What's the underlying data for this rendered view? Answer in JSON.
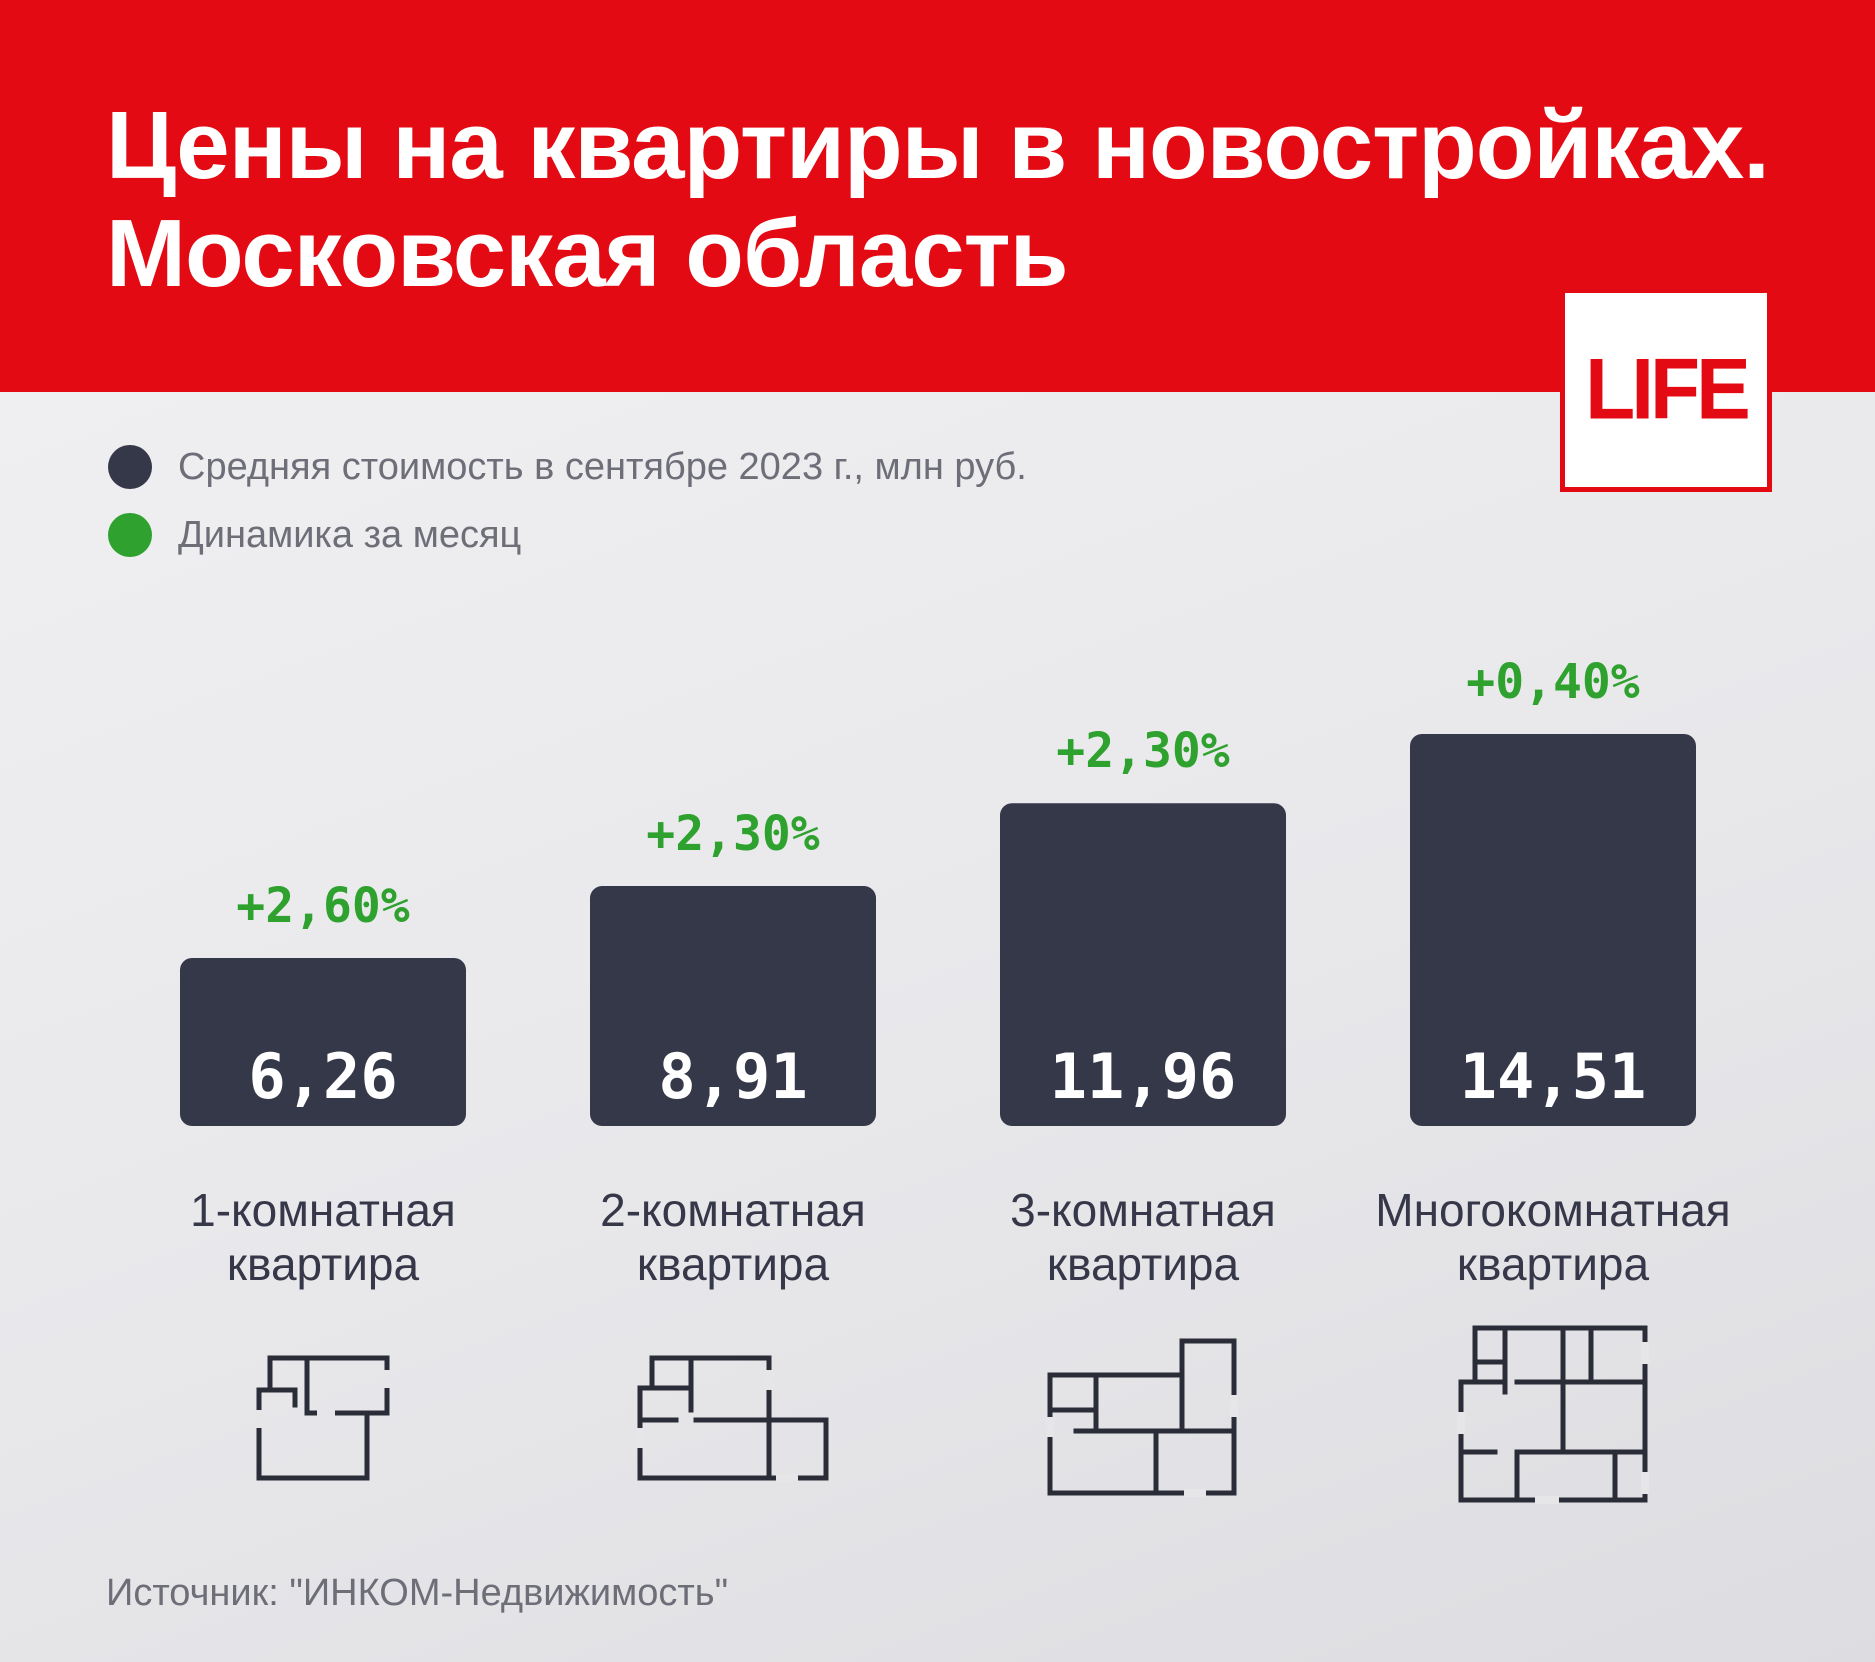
{
  "header": {
    "title_line1": "Цены на квартиры в новостройках.",
    "title_line2": "Московская область",
    "logo": "LIFE"
  },
  "legend": [
    {
      "label": "Средняя стоимость в сентябре 2023 г., млн руб.",
      "color": "#353849"
    },
    {
      "label": "Динамика за месяц",
      "color": "#2ea12e"
    }
  ],
  "chart_data": {
    "type": "bar",
    "title": "Цены на квартиры в новостройках. Московская область",
    "categories": [
      [
        "1-комнатная",
        "квартира"
      ],
      [
        "2-комнатная",
        "квартира"
      ],
      [
        "3-комнатная",
        "квартира"
      ],
      [
        "Многокомнатная",
        "квартира"
      ]
    ],
    "series": [
      {
        "name": "Средняя стоимость в сентябре 2023 г., млн руб.",
        "values": [
          6.26,
          8.91,
          11.96,
          14.51
        ],
        "labels": [
          "6,26",
          "8,91",
          "11,96",
          "14,51"
        ]
      },
      {
        "name": "Динамика за месяц",
        "values": [
          2.6,
          2.3,
          2.3,
          0.4
        ],
        "labels": [
          "+2,60%",
          "+2,30%",
          "+2,30%",
          "+0,40%"
        ]
      }
    ],
    "xlabel": "",
    "ylabel": "",
    "bar_color": "#353849",
    "change_color": "#2ea12e"
  },
  "source": "Источник: \"ИНКОМ-Недвижимость\""
}
